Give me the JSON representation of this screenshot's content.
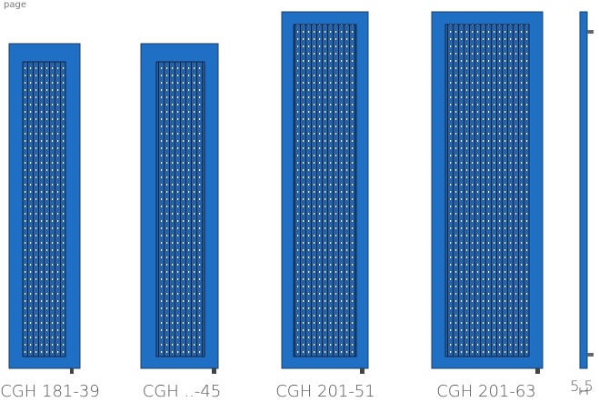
{
  "header": {
    "text": "page"
  },
  "panels": [
    {
      "label": "CGH 181-39"
    },
    {
      "label": "CGH ..-45"
    },
    {
      "label": "CGH 201-51"
    },
    {
      "label": "CGH 201-63"
    }
  ],
  "profile": {
    "label": "5,5"
  }
}
